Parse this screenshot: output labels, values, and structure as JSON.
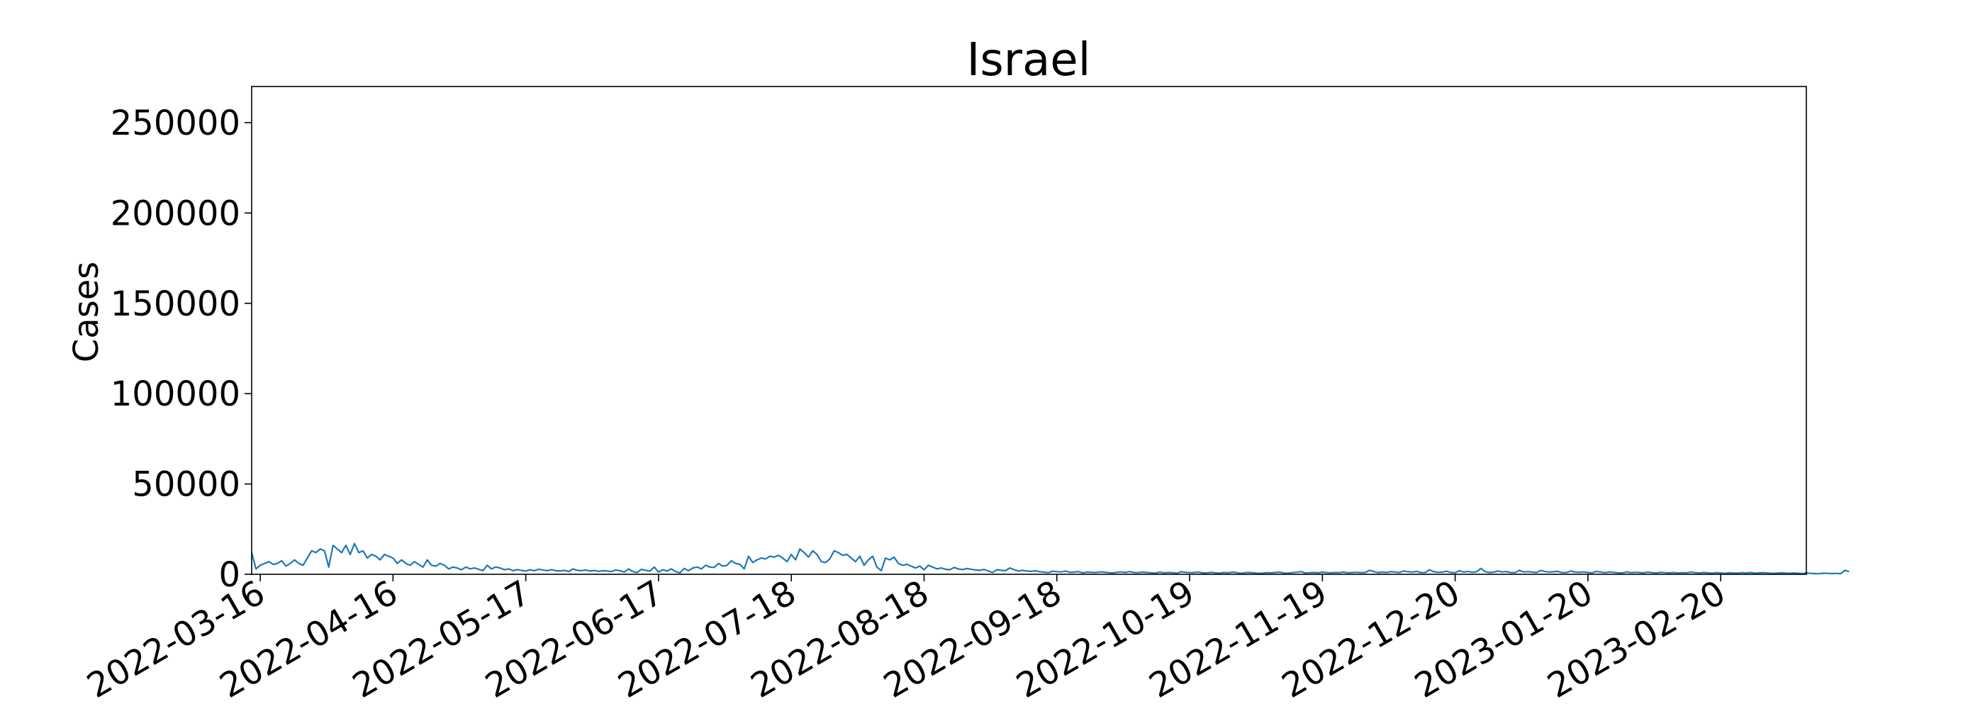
{
  "chart_data": {
    "type": "line",
    "title": "Israel",
    "xlabel": "",
    "ylabel": "Cases",
    "ylim": [
      0,
      270000
    ],
    "xlim": [
      "2022-03-14",
      "2023-03-12"
    ],
    "grid": false,
    "line_color": "#1f77b4",
    "yticks": [
      0,
      50000,
      100000,
      150000,
      200000,
      250000
    ],
    "ytick_labels": [
      "0",
      "50000",
      "100000",
      "150000",
      "200000",
      "250000"
    ],
    "xticks": [
      "2022-03-16",
      "2022-04-16",
      "2022-05-17",
      "2022-06-17",
      "2022-07-18",
      "2022-08-18",
      "2022-09-18",
      "2022-10-19",
      "2022-11-19",
      "2022-12-20",
      "2023-01-20",
      "2023-02-20"
    ],
    "series": [
      {
        "start_date": "2022-03-14",
        "values": [
          12000,
          3000,
          5000,
          6000,
          7000,
          5500,
          6000,
          7500,
          4500,
          6000,
          8000,
          6000,
          5000,
          9000,
          13000,
          12000,
          14000,
          13000,
          4000,
          16000,
          14000,
          12000,
          16000,
          11000,
          17000,
          12000,
          13000,
          9000,
          11000,
          10000,
          8000,
          11000,
          10000,
          9000,
          6000,
          8000,
          6000,
          5000,
          7000,
          5500,
          4000,
          8000,
          5000,
          4500,
          6000,
          5000,
          3000,
          4000,
          3500,
          2500,
          4000,
          3000,
          3500,
          2800,
          2000,
          5000,
          3000,
          4000,
          3500,
          2500,
          3000,
          2000,
          2600,
          2200,
          1800,
          2500,
          2000,
          2800,
          2400,
          2000,
          2600,
          2000,
          1800,
          2200,
          1500,
          3000,
          2200,
          2000,
          2400,
          1800,
          2100,
          1600,
          2000,
          1800,
          1500,
          2400,
          2000,
          1200,
          3000,
          1500,
          1000,
          2800,
          2200,
          1800,
          4000,
          1200,
          2500,
          1800,
          3000,
          1500,
          800,
          3200,
          2000,
          3500,
          4000,
          3000,
          5000,
          4000,
          3800,
          6000,
          4500,
          5000,
          7500,
          6000,
          5500,
          3000,
          10000,
          6500,
          8000,
          9000,
          8500,
          10000,
          9500,
          10500,
          9000,
          7000,
          11000,
          8000,
          14000,
          12000,
          9500,
          13000,
          11000,
          7000,
          6500,
          8500,
          13000,
          12000,
          10500,
          11000,
          9000,
          7000,
          10000,
          5000,
          8000,
          10000,
          4000,
          2000,
          9000,
          8000,
          9500,
          6000,
          5000,
          5500,
          4500,
          3500,
          4500,
          2500,
          5000,
          4000,
          3000,
          3500,
          2800,
          2500,
          3800,
          3000,
          2600,
          3200,
          2800,
          2400,
          2200,
          2700,
          1800,
          1000,
          2500,
          2200,
          2000,
          3500,
          2600,
          1800,
          2200,
          1800,
          1600,
          2000,
          1400,
          1200,
          900,
          1700,
          1500,
          1300,
          1800,
          1100,
          1200,
          1500,
          800,
          1200,
          1100,
          1000,
          1300,
          1200,
          900,
          700,
          1100,
          1300,
          1000,
          1500,
          1000,
          900,
          1200,
          1000,
          800,
          600,
          1200,
          800,
          1000,
          900,
          600,
          1400,
          1100,
          900,
          1000,
          1200,
          800,
          700,
          1100,
          800,
          600,
          1000,
          800,
          1200,
          900,
          500,
          900,
          1000,
          800,
          500,
          600,
          900,
          800,
          1000,
          1200,
          700,
          600,
          900,
          1100,
          1500,
          700,
          900,
          1000,
          800,
          1200,
          900,
          800,
          1000,
          900,
          1200,
          800,
          1000,
          1100,
          900,
          1000,
          2200,
          1500,
          900,
          1200,
          1000,
          1500,
          1200,
          1000,
          1800,
          1400,
          1200,
          1600,
          1000,
          900,
          2500,
          1400,
          1100,
          1200,
          1700,
          1000,
          900,
          2000,
          1200,
          1600,
          1100,
          1400,
          3200,
          1500,
          1000,
          1200,
          1800,
          1300,
          1500,
          1000,
          900,
          2200,
          1300,
          1500,
          1200,
          1000,
          2100,
          1500,
          1200,
          1400,
          1600,
          900,
          1000,
          1800,
          1200,
          1100,
          1300,
          1000,
          800,
          1600,
          1200,
          900,
          1300,
          1100,
          800,
          700,
          1300,
          900,
          1100,
          1000,
          800,
          1200,
          900,
          700,
          1100,
          900,
          800,
          1000,
          700,
          900,
          800,
          1200,
          900,
          700,
          1000,
          800,
          600,
          900,
          700,
          500,
          800,
          700,
          600,
          900,
          700,
          1000,
          600,
          800,
          900,
          700,
          500,
          600,
          800,
          700,
          500,
          700,
          600,
          400,
          700,
          500,
          400,
          300,
          600,
          500,
          400,
          500,
          300,
          2200,
          1500
        ]
      }
    ]
  }
}
